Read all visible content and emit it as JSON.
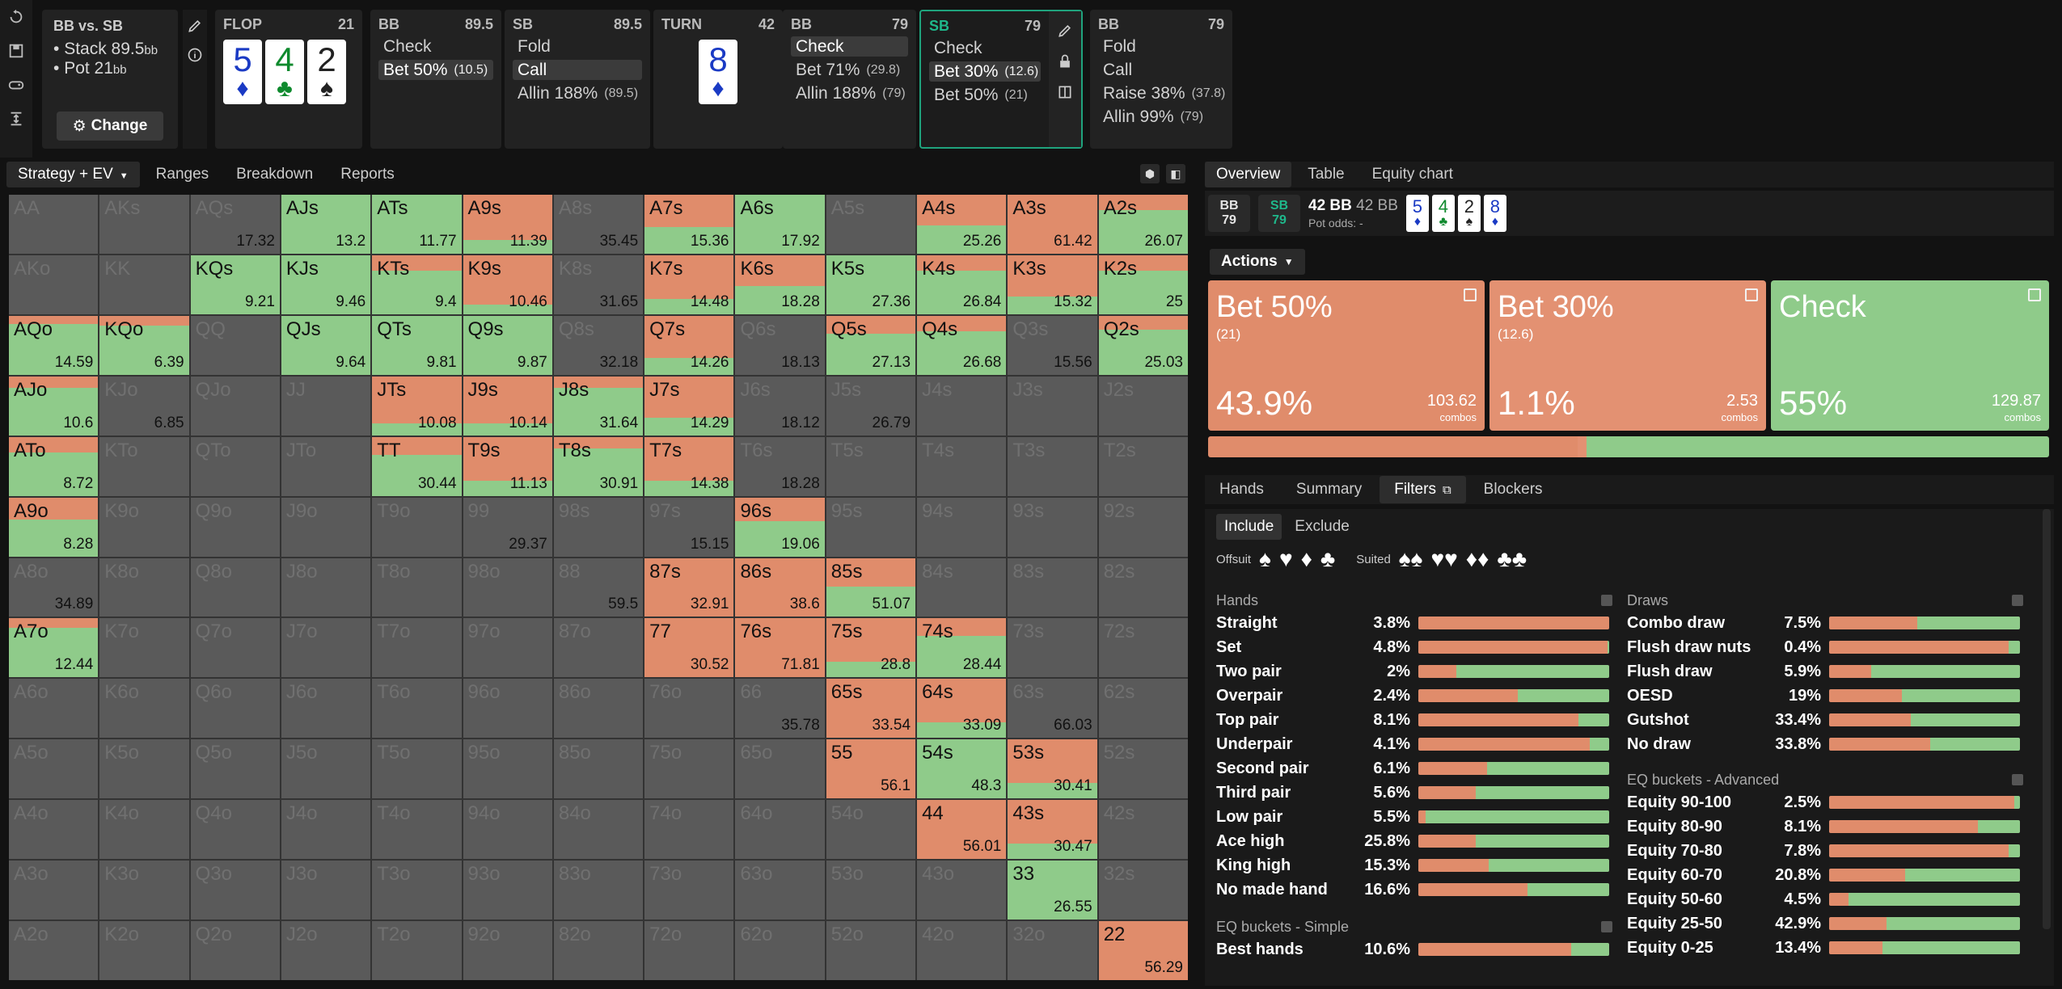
{
  "colors": {
    "bet50": "#e08c6b",
    "bet30": "#e39172",
    "check": "#8fcb8a",
    "accent": "#1fa37d",
    "gray": "#5a5a5a"
  },
  "info": {
    "title": "BB vs. SB",
    "stack": "Stack 89.5",
    "pot": "Pot 21",
    "unit": "bb",
    "change": "Change"
  },
  "flop": {
    "label": "FLOP",
    "num": "21",
    "cards": [
      {
        "rank": "5",
        "suit": "♦",
        "cls": "c-d"
      },
      {
        "rank": "4",
        "suit": "♣",
        "cls": "c-c"
      },
      {
        "rank": "2",
        "suit": "♠",
        "cls": "c-s"
      }
    ]
  },
  "panels": [
    {
      "name": "BB",
      "stack": "89.5",
      "actions": [
        {
          "label": "Check",
          "size": ""
        },
        {
          "label": "Bet 50%",
          "size": "(10.5)",
          "sel": true
        }
      ]
    },
    {
      "name": "SB",
      "stack": "89.5",
      "actions": [
        {
          "label": "Fold",
          "size": ""
        },
        {
          "label": "Call",
          "size": "",
          "sel": true
        },
        {
          "label": "Allin 188%",
          "size": "(89.5)"
        }
      ]
    }
  ],
  "turn": {
    "label": "TURN",
    "num": "42",
    "card": {
      "rank": "8",
      "suit": "♦",
      "cls": "c-d"
    }
  },
  "bbpanel": {
    "name": "BB",
    "stack": "79",
    "actions": [
      {
        "label": "Check",
        "size": "",
        "sel": true
      },
      {
        "label": "Bet 71%",
        "size": "(29.8)"
      },
      {
        "label": "Allin 188%",
        "size": "(79)"
      }
    ]
  },
  "sbpanel": {
    "name": "SB",
    "stack": "79",
    "actions": [
      {
        "label": "Check",
        "size": ""
      },
      {
        "label": "Bet 30%",
        "size": "(12.6)",
        "sel": true
      },
      {
        "label": "Bet 50%",
        "size": "(21)"
      }
    ]
  },
  "bbpanel2": {
    "name": "BB",
    "stack": "79",
    "actions": [
      {
        "label": "Fold",
        "size": ""
      },
      {
        "label": "Call",
        "size": ""
      },
      {
        "label": "Raise 38%",
        "size": "(37.8)"
      },
      {
        "label": "Allin 99%",
        "size": "(79)"
      }
    ]
  },
  "ltabs": [
    "Strategy + EV",
    "Ranges",
    "Breakdown",
    "Reports"
  ],
  "rtabs": [
    "Overview",
    "Table",
    "Equity chart"
  ],
  "pot": {
    "bb": "BB",
    "bbv": "79",
    "sb": "SB",
    "sbv": "79",
    "bb1": "42 BB",
    "bb2": "42 BB",
    "odds": "Pot odds:",
    "oddsv": "-"
  },
  "mini_cards": [
    {
      "rank": "5",
      "suit": "♦",
      "cls": "c-d"
    },
    {
      "rank": "4",
      "suit": "♣",
      "cls": "c-c"
    },
    {
      "rank": "2",
      "suit": "♠",
      "cls": "c-s"
    },
    {
      "rank": "8",
      "suit": "♦",
      "cls": "c-d"
    }
  ],
  "actions_label": "Actions",
  "action_boxes": [
    {
      "name": "Bet 50%",
      "size": "(21)",
      "pct": "43.9%",
      "combos": "103.62",
      "combos_label": "combos",
      "frac": 0.439
    },
    {
      "name": "Bet 30%",
      "size": "(12.6)",
      "pct": "1.1%",
      "combos": "2.53",
      "combos_label": "combos",
      "frac": 0.011
    },
    {
      "name": "Check",
      "size": "",
      "pct": "55%",
      "combos": "129.87",
      "combos_label": "combos",
      "frac": 0.55
    }
  ],
  "subtabs": [
    "Hands",
    "Summary",
    "Filters",
    "Blockers"
  ],
  "include": "Include",
  "exclude": "Exclude",
  "offsuit_label": "Offsuit",
  "suited_label": "Suited",
  "hands_title": "Hands",
  "hands": [
    {
      "n": "Straight",
      "p": "3.8%",
      "b": 1.0
    },
    {
      "n": "Set",
      "p": "4.8%",
      "b": 0.99
    },
    {
      "n": "Two pair",
      "p": "2%",
      "b": 0.2
    },
    {
      "n": "Overpair",
      "p": "2.4%",
      "b": 0.52
    },
    {
      "n": "Top pair",
      "p": "8.1%",
      "b": 0.84
    },
    {
      "n": "Underpair",
      "p": "4.1%",
      "b": 0.9
    },
    {
      "n": "Second pair",
      "p": "6.1%",
      "b": 0.36
    },
    {
      "n": "Third pair",
      "p": "5.6%",
      "b": 0.3
    },
    {
      "n": "Low pair",
      "p": "5.5%",
      "b": 0.04
    },
    {
      "n": "Ace high",
      "p": "25.8%",
      "b": 0.3
    },
    {
      "n": "King high",
      "p": "15.3%",
      "b": 0.37
    },
    {
      "n": "No made hand",
      "p": "16.6%",
      "b": 0.57
    }
  ],
  "eqs_title": "EQ buckets - Simple",
  "eqs": [
    {
      "n": "Best hands",
      "p": "10.6%",
      "b": 0.8
    }
  ],
  "draws_title": "Draws",
  "draws": [
    {
      "n": "Combo draw",
      "p": "7.5%",
      "b": 0.46
    },
    {
      "n": "Flush draw nuts",
      "p": "0.4%",
      "b": 0.94
    },
    {
      "n": "Flush draw",
      "p": "5.9%",
      "b": 0.22
    },
    {
      "n": "OESD",
      "p": "19%",
      "b": 0.38
    },
    {
      "n": "Gutshot",
      "p": "33.4%",
      "b": 0.43
    },
    {
      "n": "No draw",
      "p": "33.8%",
      "b": 0.53
    }
  ],
  "eqa_title": "EQ buckets - Advanced",
  "eqa": [
    {
      "n": "Equity 90-100",
      "p": "2.5%",
      "b": 0.97
    },
    {
      "n": "Equity 80-90",
      "p": "8.1%",
      "b": 0.78
    },
    {
      "n": "Equity 70-80",
      "p": "7.8%",
      "b": 0.94
    },
    {
      "n": "Equity 60-70",
      "p": "20.8%",
      "b": 0.4
    },
    {
      "n": "Equity 50-60",
      "p": "4.5%",
      "b": 0.1
    },
    {
      "n": "Equity 25-50",
      "p": "42.9%",
      "b": 0.3
    },
    {
      "n": "Equity 0-25",
      "p": "13.4%",
      "b": 0.28
    }
  ],
  "grid": [
    [
      [
        "AA",
        "",
        0,
        0,
        1
      ],
      [
        "AKs",
        "",
        0,
        0,
        1
      ],
      [
        "AQs",
        "17.32",
        0.48,
        0,
        0.52
      ],
      [
        "AJs",
        "13.2",
        0,
        1,
        0
      ],
      [
        "ATs",
        "11.77",
        0,
        1,
        0
      ],
      [
        "A9s",
        "11.39",
        0.77,
        0.23,
        0
      ],
      [
        "A8s",
        "35.45",
        0.24,
        0,
        0.76
      ],
      [
        "A7s",
        "15.36",
        0.55,
        0.45,
        0
      ],
      [
        "A6s",
        "17.92",
        0,
        1,
        0
      ],
      [
        "A5s",
        "",
        0,
        0,
        1
      ],
      [
        "A4s",
        "25.26",
        0.52,
        0.48,
        0
      ],
      [
        "A3s",
        "61.42",
        1,
        0,
        0
      ],
      [
        "A2s",
        "26.07",
        0.26,
        0.74,
        0
      ]
    ],
    [
      [
        "AKo",
        "",
        0,
        0,
        1
      ],
      [
        "KK",
        "",
        0,
        0,
        1
      ],
      [
        "KQs",
        "9.21",
        0,
        1,
        0
      ],
      [
        "KJs",
        "9.46",
        0,
        1,
        0
      ],
      [
        "KTs",
        "9.4",
        0.26,
        0.74,
        0
      ],
      [
        "K9s",
        "10.46",
        0.84,
        0.16,
        0
      ],
      [
        "K8s",
        "31.65",
        0.72,
        0,
        0.28
      ],
      [
        "K7s",
        "14.48",
        0.74,
        0.26,
        0
      ],
      [
        "K6s",
        "18.28",
        0.52,
        0.48,
        0
      ],
      [
        "K5s",
        "27.36",
        0,
        1,
        0
      ],
      [
        "K4s",
        "26.84",
        0.26,
        0.74,
        0
      ],
      [
        "K3s",
        "15.32",
        0.7,
        0.3,
        0
      ],
      [
        "K2s",
        "25",
        0.26,
        0.74,
        0
      ]
    ],
    [
      [
        "AQo",
        "14.59",
        0.14,
        0.86,
        0
      ],
      [
        "KQo",
        "6.39",
        0.16,
        0.84,
        0
      ],
      [
        "QQ",
        "",
        0,
        0,
        1
      ],
      [
        "QJs",
        "9.64",
        0,
        1,
        0
      ],
      [
        "QTs",
        "9.81",
        0,
        1,
        0
      ],
      [
        "Q9s",
        "9.87",
        0,
        1,
        0
      ],
      [
        "Q8s",
        "32.18",
        0.72,
        0,
        0.28
      ],
      [
        "Q7s",
        "14.26",
        0.72,
        0.28,
        0
      ],
      [
        "Q6s",
        "18.13",
        0.4,
        0,
        0.6
      ],
      [
        "Q5s",
        "27.13",
        0.3,
        0.7,
        0
      ],
      [
        "Q4s",
        "26.68",
        0.26,
        0.74,
        0
      ],
      [
        "Q3s",
        "15.56",
        0.24,
        0,
        0.76
      ],
      [
        "Q2s",
        "25.03",
        0.24,
        0.76,
        0
      ]
    ],
    [
      [
        "AJo",
        "10.6",
        0.2,
        0.8,
        0
      ],
      [
        "KJo",
        "6.85",
        0.16,
        0,
        0.84
      ],
      [
        "QJo",
        "",
        0,
        0,
        1
      ],
      [
        "JJ",
        "",
        0,
        0,
        1
      ],
      [
        "JTs",
        "10.08",
        0.8,
        0.2,
        0
      ],
      [
        "J9s",
        "10.14",
        0.8,
        0.2,
        0
      ],
      [
        "J8s",
        "31.64",
        0.2,
        0.8,
        0
      ],
      [
        "J7s",
        "14.29",
        0.7,
        0.3,
        0
      ],
      [
        "J6s",
        "18.12",
        0.36,
        0,
        0.64
      ],
      [
        "J5s",
        "26.79",
        0.16,
        0,
        0.84
      ],
      [
        "J4s",
        "",
        0,
        0,
        1
      ],
      [
        "J3s",
        "",
        0,
        0,
        1
      ],
      [
        "J2s",
        "",
        0,
        0,
        1
      ]
    ],
    [
      [
        "ATo",
        "8.72",
        0.26,
        0.74,
        0
      ],
      [
        "KTo",
        "",
        0,
        0,
        1
      ],
      [
        "QTo",
        "",
        0,
        0,
        1
      ],
      [
        "JTo",
        "",
        0,
        0,
        1
      ],
      [
        "TT",
        "30.44",
        0.3,
        0.7,
        0
      ],
      [
        "T9s",
        "11.13",
        0.74,
        0.26,
        0
      ],
      [
        "T8s",
        "30.91",
        0.2,
        0.8,
        0
      ],
      [
        "T7s",
        "14.38",
        0.74,
        0.26,
        0
      ],
      [
        "T6s",
        "18.28",
        0.36,
        0,
        0.64
      ],
      [
        "T5s",
        "",
        0,
        0,
        1
      ],
      [
        "T4s",
        "",
        0,
        0,
        1
      ],
      [
        "T3s",
        "",
        0,
        0,
        1
      ],
      [
        "T2s",
        "",
        0,
        0,
        1
      ]
    ],
    [
      [
        "A9o",
        "8.28",
        0.38,
        0.62,
        0
      ],
      [
        "K9o",
        "",
        0,
        0,
        1
      ],
      [
        "Q9o",
        "",
        0,
        0,
        1
      ],
      [
        "J9o",
        "",
        0,
        0,
        1
      ],
      [
        "T9o",
        "",
        0,
        0,
        1
      ],
      [
        "99",
        "29.37",
        0.36,
        0,
        0.64
      ],
      [
        "98s",
        "",
        0,
        0,
        1
      ],
      [
        "97s",
        "15.15",
        0.3,
        0,
        0.7
      ],
      [
        "96s",
        "19.06",
        0.4,
        0.6,
        0
      ],
      [
        "95s",
        "",
        0,
        0,
        1
      ],
      [
        "94s",
        "",
        0,
        0,
        1
      ],
      [
        "93s",
        "",
        0,
        0,
        1
      ],
      [
        "92s",
        "",
        0,
        0,
        1
      ]
    ],
    [
      [
        "A8o",
        "34.89",
        0.4,
        0,
        0.6
      ],
      [
        "K8o",
        "",
        0,
        0,
        1
      ],
      [
        "Q8o",
        "",
        0,
        0,
        1
      ],
      [
        "J8o",
        "",
        0,
        0,
        1
      ],
      [
        "T8o",
        "",
        0,
        0,
        1
      ],
      [
        "98o",
        "",
        0,
        0,
        1
      ],
      [
        "88",
        "59.5",
        0.7,
        0,
        0.3
      ],
      [
        "87s",
        "32.91",
        1,
        0,
        0
      ],
      [
        "86s",
        "38.6",
        1,
        0,
        0
      ],
      [
        "85s",
        "51.07",
        0.48,
        0.52,
        0
      ],
      [
        "84s",
        "",
        0,
        0,
        1
      ],
      [
        "83s",
        "",
        0,
        0,
        1
      ],
      [
        "82s",
        "",
        0,
        0,
        1
      ]
    ],
    [
      [
        "A7o",
        "12.44",
        0.16,
        0.84,
        0
      ],
      [
        "K7o",
        "",
        0,
        0,
        1
      ],
      [
        "Q7o",
        "",
        0,
        0,
        1
      ],
      [
        "J7o",
        "",
        0,
        0,
        1
      ],
      [
        "T7o",
        "",
        0,
        0,
        1
      ],
      [
        "97o",
        "",
        0,
        0,
        1
      ],
      [
        "87o",
        "",
        0,
        0,
        1
      ],
      [
        "77",
        "30.52",
        1,
        0,
        0
      ],
      [
        "76s",
        "71.81",
        1,
        0,
        0
      ],
      [
        "75s",
        "28.8",
        0.74,
        0.26,
        0
      ],
      [
        "74s",
        "28.44",
        0.3,
        0.7,
        0
      ],
      [
        "73s",
        "",
        0,
        0,
        1
      ],
      [
        "72s",
        "",
        0,
        0,
        1
      ]
    ],
    [
      [
        "A6o",
        "",
        0,
        0,
        1
      ],
      [
        "K6o",
        "",
        0,
        0,
        1
      ],
      [
        "Q6o",
        "",
        0,
        0,
        1
      ],
      [
        "J6o",
        "",
        0,
        0,
        1
      ],
      [
        "T6o",
        "",
        0,
        0,
        1
      ],
      [
        "96o",
        "",
        0,
        0,
        1
      ],
      [
        "86o",
        "",
        0,
        0,
        1
      ],
      [
        "76o",
        "",
        0,
        0,
        1
      ],
      [
        "66",
        "35.78",
        0.5,
        0,
        0.5
      ],
      [
        "65s",
        "33.54",
        1,
        0,
        0
      ],
      [
        "64s",
        "33.09",
        0.74,
        0.26,
        0
      ],
      [
        "63s",
        "66.03",
        0.18,
        0,
        0.82
      ],
      [
        "62s",
        "",
        0,
        0,
        1
      ]
    ],
    [
      [
        "A5o",
        "",
        0,
        0,
        1
      ],
      [
        "K5o",
        "",
        0,
        0,
        1
      ],
      [
        "Q5o",
        "",
        0,
        0,
        1
      ],
      [
        "J5o",
        "",
        0,
        0,
        1
      ],
      [
        "T5o",
        "",
        0,
        0,
        1
      ],
      [
        "95o",
        "",
        0,
        0,
        1
      ],
      [
        "85o",
        "",
        0,
        0,
        1
      ],
      [
        "75o",
        "",
        0,
        0,
        1
      ],
      [
        "65o",
        "",
        0,
        0,
        1
      ],
      [
        "55",
        "56.1",
        1,
        0,
        0
      ],
      [
        "54s",
        "48.3",
        0,
        1,
        0
      ],
      [
        "53s",
        "30.41",
        0.74,
        0.26,
        0
      ],
      [
        "52s",
        "",
        0,
        0,
        1
      ]
    ],
    [
      [
        "A4o",
        "",
        0,
        0,
        1
      ],
      [
        "K4o",
        "",
        0,
        0,
        1
      ],
      [
        "Q4o",
        "",
        0,
        0,
        1
      ],
      [
        "J4o",
        "",
        0,
        0,
        1
      ],
      [
        "T4o",
        "",
        0,
        0,
        1
      ],
      [
        "94o",
        "",
        0,
        0,
        1
      ],
      [
        "84o",
        "",
        0,
        0,
        1
      ],
      [
        "74o",
        "",
        0,
        0,
        1
      ],
      [
        "64o",
        "",
        0,
        0,
        1
      ],
      [
        "54o",
        "",
        0,
        0,
        1
      ],
      [
        "44",
        "56.01",
        1,
        0,
        0
      ],
      [
        "43s",
        "30.47",
        0.74,
        0.26,
        0
      ],
      [
        "42s",
        "",
        0,
        0,
        1
      ]
    ],
    [
      [
        "A3o",
        "",
        0,
        0,
        1
      ],
      [
        "K3o",
        "",
        0,
        0,
        1
      ],
      [
        "Q3o",
        "",
        0,
        0,
        1
      ],
      [
        "J3o",
        "",
        0,
        0,
        1
      ],
      [
        "T3o",
        "",
        0,
        0,
        1
      ],
      [
        "93o",
        "",
        0,
        0,
        1
      ],
      [
        "83o",
        "",
        0,
        0,
        1
      ],
      [
        "73o",
        "",
        0,
        0,
        1
      ],
      [
        "63o",
        "",
        0,
        0,
        1
      ],
      [
        "53o",
        "",
        0,
        0,
        1
      ],
      [
        "43o",
        "",
        0,
        0,
        1
      ],
      [
        "33",
        "26.55",
        0,
        1,
        0
      ],
      [
        "32s",
        "",
        0,
        0,
        1
      ]
    ],
    [
      [
        "A2o",
        "",
        0,
        0,
        1
      ],
      [
        "K2o",
        "",
        0,
        0,
        1
      ],
      [
        "Q2o",
        "",
        0,
        0,
        1
      ],
      [
        "J2o",
        "",
        0,
        0,
        1
      ],
      [
        "T2o",
        "",
        0,
        0,
        1
      ],
      [
        "92o",
        "",
        0,
        0,
        1
      ],
      [
        "82o",
        "",
        0,
        0,
        1
      ],
      [
        "72o",
        "",
        0,
        0,
        1
      ],
      [
        "62o",
        "",
        0,
        0,
        1
      ],
      [
        "52o",
        "",
        0,
        0,
        1
      ],
      [
        "42o",
        "",
        0,
        0,
        1
      ],
      [
        "32o",
        "",
        0,
        0,
        1
      ],
      [
        "22",
        "56.29",
        1,
        0,
        0
      ]
    ]
  ]
}
